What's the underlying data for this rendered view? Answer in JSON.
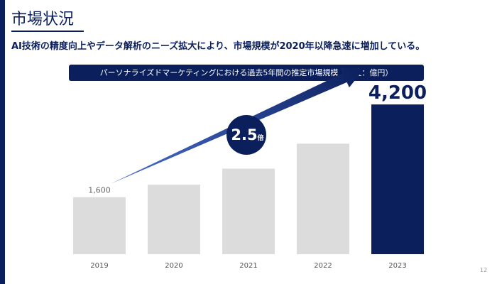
{
  "slide": {
    "title": "市場状況",
    "subtitle": "AI技術の精度向上やデータ解析のニーズ拡大により、市場規模が2020年以降急速に増加している。",
    "page_number": "12"
  },
  "chart_data": {
    "type": "bar",
    "title": "パーソナライズドマーケティングにおける過去5年間の推定市場規模（単位：億円）",
    "categories": [
      "2019",
      "2020",
      "2021",
      "2022",
      "2023"
    ],
    "values": [
      1600,
      1950,
      2400,
      3100,
      4200
    ],
    "value_labels": [
      "1,600",
      "",
      "",
      "",
      "4,200"
    ],
    "ylim": [
      0,
      4800
    ],
    "bar_colors": [
      "#dcdcdc",
      "#dcdcdc",
      "#dcdcdc",
      "#dcdcdc",
      "#0b1f5c"
    ],
    "highlight_color": "#0b1f5c",
    "grid": false,
    "annotation": {
      "number": "2.5",
      "unit": "倍"
    }
  }
}
